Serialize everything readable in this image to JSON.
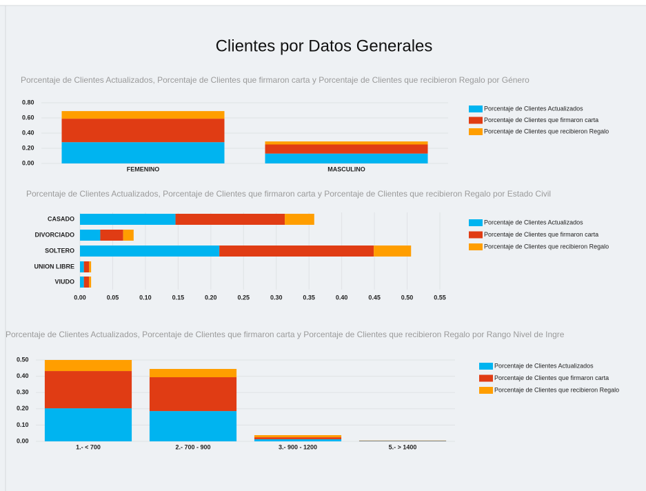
{
  "title": "Clientes por Datos Generales",
  "chart_data": [
    {
      "type": "bar",
      "stacked": true,
      "horizontal": false,
      "title": "Porcentaje de Clientes Actualizados, Porcentaje de Clientes que firmaron carta y Porcentaje de Clientes que recibieron Regalo por Género",
      "categories": [
        "FEMENINO",
        "MASCULINO"
      ],
      "series": [
        {
          "name": "Porcentaje de Clientes Actualizados",
          "color": "#00b4f0",
          "values": [
            0.28,
            0.13
          ]
        },
        {
          "name": "Porcentaje de Clientes que firmaron carta",
          "color": "#e03c14",
          "values": [
            0.31,
            0.12
          ]
        },
        {
          "name": "Porcentaje de Clientes que recibieron Regalo",
          "color": "#ff9e00",
          "values": [
            0.1,
            0.04
          ]
        }
      ],
      "ylim": [
        0,
        0.8
      ],
      "yticks": [
        {
          "value": 0,
          "label": "0.00"
        },
        {
          "value": 0.2,
          "label": "0.20"
        },
        {
          "value": 0.4,
          "label": "0.40"
        },
        {
          "value": 0.6,
          "label": "0.60"
        },
        {
          "value": 0.8,
          "label": "0.80"
        }
      ],
      "grid": true
    },
    {
      "type": "bar",
      "stacked": true,
      "horizontal": true,
      "title": "Porcentaje de Clientes Actualizados, Porcentaje de Clientes que firmaron carta y Porcentaje de Clientes que recibieron Regalo por Estado Civil",
      "categories": [
        "CASADO",
        "DIVORCIADO",
        "SOLTERO",
        "UNION LIBRE",
        "VIUDO"
      ],
      "series": [
        {
          "name": "Porcentaje de Clientes Actualizados",
          "color": "#00b4f0",
          "values": [
            0.146,
            0.031,
            0.213,
            0.006,
            0.006
          ]
        },
        {
          "name": "Porcentaje de Clientes que firmaron carta",
          "color": "#e03c14",
          "values": [
            0.167,
            0.035,
            0.236,
            0.008,
            0.008
          ]
        },
        {
          "name": "Porcentaje de Clientes que recibieron Regalo",
          "color": "#ff9e00",
          "values": [
            0.045,
            0.016,
            0.057,
            0.003,
            0.003
          ]
        }
      ],
      "xlim": [
        0,
        0.55
      ],
      "xticks": [
        {
          "value": 0,
          "label": "0.00"
        },
        {
          "value": 0.05,
          "label": "0.05"
        },
        {
          "value": 0.1,
          "label": "0.10"
        },
        {
          "value": 0.15,
          "label": "0.15"
        },
        {
          "value": 0.2,
          "label": "0.20"
        },
        {
          "value": 0.25,
          "label": "0.25"
        },
        {
          "value": 0.3,
          "label": "0.30"
        },
        {
          "value": 0.35,
          "label": "0.35"
        },
        {
          "value": 0.4,
          "label": "0.40"
        },
        {
          "value": 0.45,
          "label": "0.45"
        },
        {
          "value": 0.5,
          "label": "0.50"
        },
        {
          "value": 0.55,
          "label": "0.55"
        }
      ],
      "grid": true
    },
    {
      "type": "bar",
      "stacked": true,
      "horizontal": false,
      "title": "Porcentaje de Clientes Actualizados, Porcentaje de Clientes que firmaron carta y Porcentaje de Clientes que recibieron Regalo por Rango Nivel de Ingre",
      "categories": [
        "1.- < 700",
        "2.- 700 - 900",
        "3.- 900 - 1200",
        "5.- > 1400"
      ],
      "series": [
        {
          "name": "Porcentaje de Clientes Actualizados",
          "color": "#00b4f0",
          "values": [
            0.203,
            0.186,
            0.013,
            0.002
          ]
        },
        {
          "name": "Porcentaje de Clientes que firmaron carta",
          "color": "#e03c14",
          "values": [
            0.229,
            0.208,
            0.012,
            0.002
          ]
        },
        {
          "name": "Porcentaje de Clientes que recibieron Regalo",
          "color": "#ff9e00",
          "values": [
            0.068,
            0.051,
            0.013,
            0.001
          ]
        }
      ],
      "ylim": [
        0,
        0.5
      ],
      "yticks": [
        {
          "value": 0,
          "label": "0.00"
        },
        {
          "value": 0.1,
          "label": "0.10"
        },
        {
          "value": 0.2,
          "label": "0.20"
        },
        {
          "value": 0.3,
          "label": "0.30"
        },
        {
          "value": 0.4,
          "label": "0.40"
        },
        {
          "value": 0.5,
          "label": "0.50"
        }
      ],
      "grid": true
    }
  ]
}
